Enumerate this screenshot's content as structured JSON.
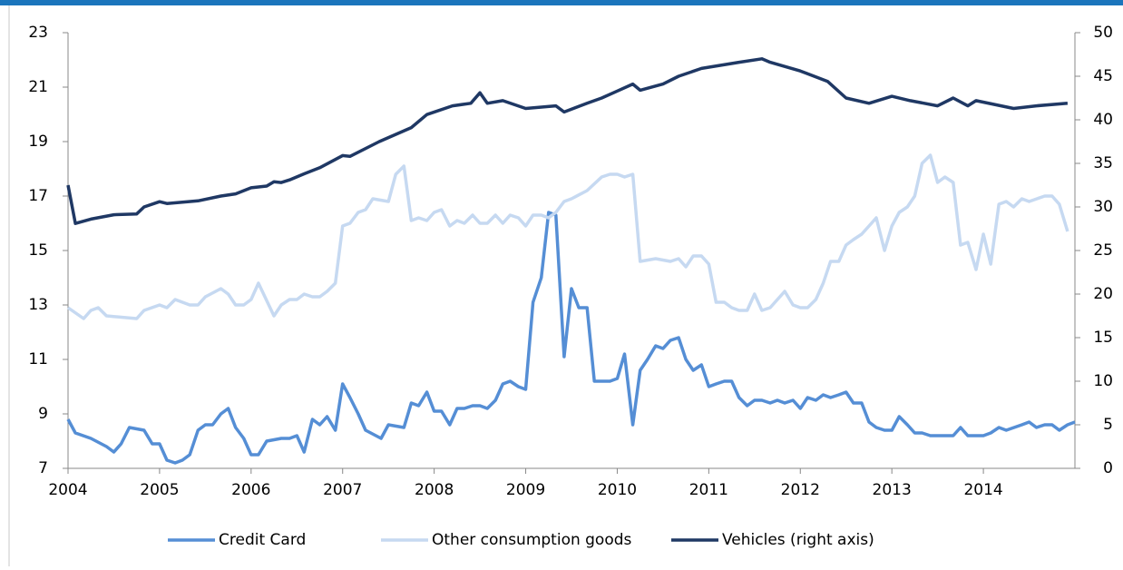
{
  "chart_data": {
    "type": "line",
    "xlim": [
      2004,
      2015
    ],
    "xticks": [
      2004,
      2005,
      2006,
      2007,
      2008,
      2009,
      2010,
      2011,
      2012,
      2013,
      2014
    ],
    "ylim": [
      7,
      23
    ],
    "yticks": [
      7,
      9,
      11,
      13,
      15,
      17,
      19,
      21,
      23
    ],
    "y2lim": [
      0,
      50
    ],
    "y2ticks": [
      0,
      5,
      10,
      15,
      20,
      25,
      30,
      35,
      40,
      45,
      50
    ],
    "grid": false,
    "legend": "bottom",
    "series": [
      {
        "name": "Credit Card",
        "color": "#558ed5",
        "x": [
          2004,
          2004.08,
          2004.25,
          2004.42,
          2004.5,
          2004.58,
          2004.67,
          2004.83,
          2004.92,
          2005,
          2005.08,
          2005.17,
          2005.25,
          2005.33,
          2005.42,
          2005.5,
          2005.58,
          2005.67,
          2005.75,
          2005.83,
          2005.92,
          2006,
          2006.08,
          2006.17,
          2006.33,
          2006.42,
          2006.5,
          2006.58,
          2006.67,
          2006.75,
          2006.83,
          2006.92,
          2007,
          2007.08,
          2007.17,
          2007.25,
          2007.42,
          2007.5,
          2007.67,
          2007.75,
          2007.83,
          2007.92,
          2008,
          2008.08,
          2008.17,
          2008.25,
          2008.33,
          2008.42,
          2008.5,
          2008.58,
          2008.67,
          2008.75,
          2008.83,
          2008.92,
          2009,
          2009.08,
          2009.17,
          2009.25,
          2009.33,
          2009.42,
          2009.5,
          2009.58,
          2009.67,
          2009.75,
          2009.92,
          2010,
          2010.08,
          2010.17,
          2010.25,
          2010.33,
          2010.42,
          2010.5,
          2010.58,
          2010.67,
          2010.75,
          2010.83,
          2010.92,
          2011,
          2011.08,
          2011.17,
          2011.25,
          2011.33,
          2011.42,
          2011.5,
          2011.58,
          2011.67,
          2011.75,
          2011.83,
          2011.92,
          2012,
          2012.08,
          2012.17,
          2012.25,
          2012.33,
          2012.42,
          2012.5,
          2012.58,
          2012.67,
          2012.75,
          2012.83,
          2012.92,
          2013,
          2013.08,
          2013.17,
          2013.25,
          2013.33,
          2013.42,
          2013.58,
          2013.67,
          2013.75,
          2013.83,
          2013.92,
          2014,
          2014.08,
          2014.17,
          2014.25,
          2014.42,
          2014.5,
          2014.58,
          2014.67,
          2014.75,
          2014.83,
          2014.92,
          2015
        ],
        "values": [
          8.8,
          8.3,
          8.1,
          7.8,
          7.6,
          7.9,
          8.5,
          8.4,
          7.9,
          7.9,
          7.3,
          7.2,
          7.3,
          7.5,
          8.4,
          8.6,
          8.6,
          9.0,
          9.2,
          8.5,
          8.1,
          7.5,
          7.5,
          8.0,
          8.1,
          8.1,
          8.2,
          7.6,
          8.8,
          8.6,
          8.9,
          8.4,
          10.1,
          9.6,
          9.0,
          8.4,
          8.1,
          8.6,
          8.5,
          9.4,
          9.3,
          9.8,
          9.1,
          9.1,
          8.6,
          9.2,
          9.2,
          9.3,
          9.3,
          9.2,
          9.5,
          10.1,
          10.2,
          10.0,
          9.9,
          13.1,
          14.0,
          16.4,
          16.3,
          11.1,
          13.6,
          12.9,
          12.9,
          10.2,
          10.2,
          10.3,
          11.2,
          8.6,
          10.6,
          11.0,
          11.5,
          11.4,
          11.7,
          11.8,
          11.0,
          10.6,
          10.8,
          10.0,
          10.1,
          10.2,
          10.2,
          9.6,
          9.3,
          9.5,
          9.5,
          9.4,
          9.5,
          9.4,
          9.5,
          9.2,
          9.6,
          9.5,
          9.7,
          9.6,
          9.7,
          9.8,
          9.4,
          9.4,
          8.7,
          8.5,
          8.4,
          8.4,
          8.9,
          8.6,
          8.3,
          8.3,
          8.2,
          8.2,
          8.2,
          8.5,
          8.2,
          8.2,
          8.2,
          8.3,
          8.5,
          8.4,
          8.6,
          8.7,
          8.5,
          8.6,
          8.6,
          8.4,
          8.6,
          8.7
        ]
      },
      {
        "name": "Other consumption goods",
        "color": "#c6d9f1",
        "x": [
          2004,
          2004.17,
          2004.25,
          2004.33,
          2004.42,
          2004.75,
          2004.83,
          2005,
          2005.08,
          2005.17,
          2005.33,
          2005.42,
          2005.5,
          2005.67,
          2005.75,
          2005.83,
          2005.92,
          2006,
          2006.08,
          2006.25,
          2006.33,
          2006.42,
          2006.5,
          2006.58,
          2006.67,
          2006.75,
          2006.83,
          2006.92,
          2007,
          2007.08,
          2007.17,
          2007.25,
          2007.33,
          2007.5,
          2007.58,
          2007.67,
          2007.75,
          2007.83,
          2007.92,
          2008,
          2008.08,
          2008.17,
          2008.25,
          2008.33,
          2008.42,
          2008.5,
          2008.58,
          2008.67,
          2008.75,
          2008.83,
          2008.92,
          2009,
          2009.08,
          2009.17,
          2009.25,
          2009.33,
          2009.42,
          2009.5,
          2009.67,
          2009.83,
          2009.92,
          2010,
          2010.08,
          2010.17,
          2010.25,
          2010.42,
          2010.58,
          2010.67,
          2010.75,
          2010.83,
          2010.92,
          2011,
          2011.08,
          2011.17,
          2011.25,
          2011.33,
          2011.42,
          2011.5,
          2011.58,
          2011.67,
          2011.83,
          2011.92,
          2012,
          2012.08,
          2012.17,
          2012.25,
          2012.33,
          2012.42,
          2012.5,
          2012.58,
          2012.67,
          2012.75,
          2012.83,
          2012.92,
          2013,
          2013.08,
          2013.17,
          2013.25,
          2013.33,
          2013.42,
          2013.5,
          2013.58,
          2013.67,
          2013.75,
          2013.83,
          2013.92,
          2014,
          2014.08,
          2014.17,
          2014.25,
          2014.33,
          2014.42,
          2014.5,
          2014.67,
          2014.75,
          2014.83,
          2014.92
        ],
        "values": [
          12.9,
          12.5,
          12.8,
          12.9,
          12.6,
          12.5,
          12.8,
          13.0,
          12.9,
          13.2,
          13.0,
          13.0,
          13.3,
          13.6,
          13.4,
          13.0,
          13.0,
          13.2,
          13.8,
          12.6,
          13.0,
          13.2,
          13.2,
          13.4,
          13.3,
          13.3,
          13.5,
          13.8,
          15.9,
          16.0,
          16.4,
          16.5,
          16.9,
          16.8,
          17.8,
          18.1,
          16.1,
          16.2,
          16.1,
          16.4,
          16.5,
          15.9,
          16.1,
          16.0,
          16.3,
          16.0,
          16.0,
          16.3,
          16.0,
          16.3,
          16.2,
          15.9,
          16.3,
          16.3,
          16.2,
          16.4,
          16.8,
          16.9,
          17.2,
          17.7,
          17.8,
          17.8,
          17.7,
          17.8,
          14.6,
          14.7,
          14.6,
          14.7,
          14.4,
          14.8,
          14.8,
          14.5,
          13.1,
          13.1,
          12.9,
          12.8,
          12.8,
          13.4,
          12.8,
          12.9,
          13.5,
          13.0,
          12.9,
          12.9,
          13.2,
          13.8,
          14.6,
          14.6,
          15.2,
          15.4,
          15.6,
          15.9,
          16.2,
          15.0,
          15.9,
          16.4,
          16.6,
          17.0,
          18.2,
          18.5,
          17.5,
          17.7,
          17.5,
          15.2,
          15.3,
          14.3,
          15.6,
          14.5,
          16.7,
          16.8,
          16.6,
          16.9,
          16.8,
          17.0,
          17.0,
          16.7,
          15.7
        ]
      },
      {
        "name": "Vehicles (right axis)",
        "color": "#1f3864",
        "axis": "y2",
        "x": [
          2004,
          2004.08,
          2004.25,
          2004.5,
          2004.75,
          2004.83,
          2005,
          2005.08,
          2005.42,
          2005.67,
          2005.83,
          2006,
          2006.17,
          2006.25,
          2006.33,
          2006.42,
          2006.58,
          2006.75,
          2007,
          2007.08,
          2007.4,
          2007.75,
          2007.92,
          2008.2,
          2008.4,
          2008.5,
          2008.58,
          2008.75,
          2009,
          2009.33,
          2009.42,
          2009.67,
          2009.83,
          2010,
          2010.17,
          2010.25,
          2010.5,
          2010.67,
          2010.92,
          2011.33,
          2011.58,
          2011.67,
          2012,
          2012.3,
          2012.5,
          2012.75,
          2013,
          2013.2,
          2013.5,
          2013.67,
          2013.83,
          2013.92,
          2014.33,
          2014.58,
          2014.92
        ],
        "values": [
          32.5,
          28.1,
          28.6,
          29.1,
          29.2,
          30.0,
          30.6,
          30.4,
          30.7,
          31.25,
          31.5,
          32.2,
          32.4,
          32.9,
          32.8,
          33.1,
          33.8,
          34.5,
          35.9,
          35.8,
          37.5,
          39.1,
          40.6,
          41.6,
          41.9,
          43.1,
          41.9,
          42.2,
          41.3,
          41.6,
          40.9,
          41.9,
          42.5,
          43.3,
          44.1,
          43.4,
          44.1,
          45.0,
          45.9,
          46.6,
          47.0,
          46.6,
          45.6,
          44.4,
          42.5,
          41.9,
          42.7,
          42.2,
          41.6,
          42.5,
          41.6,
          42.2,
          41.3,
          41.6,
          41.9
        ]
      }
    ]
  }
}
